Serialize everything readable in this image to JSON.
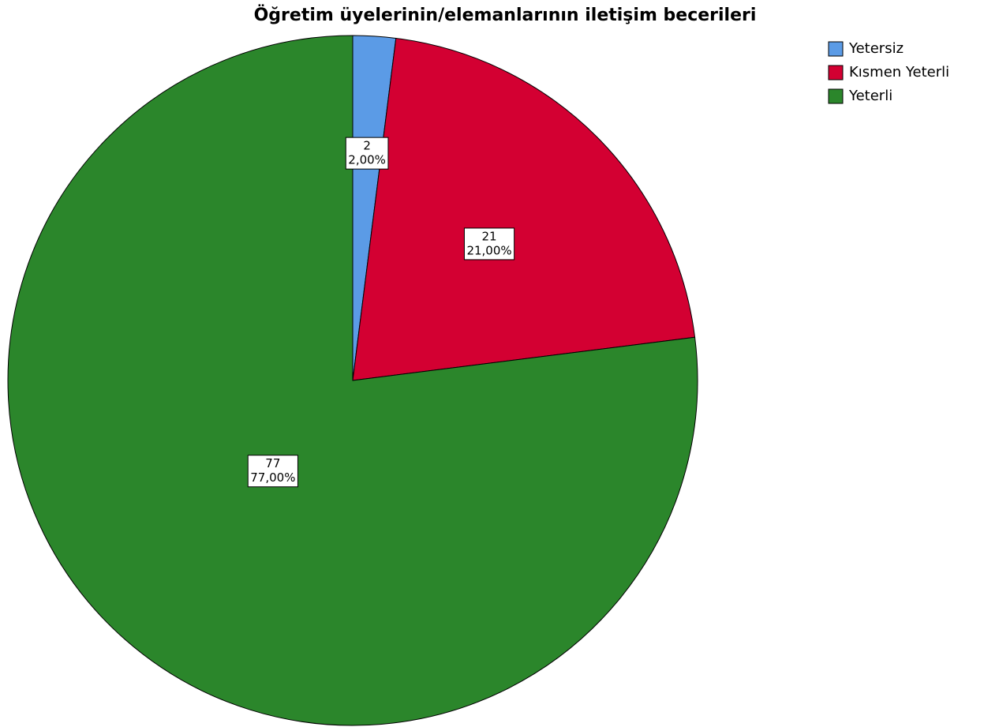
{
  "chart_data": {
    "type": "pie",
    "title": "Öğretim üyelerinin/elemanlarının iletişim becerileri",
    "categories": [
      "Yetersiz",
      "Kısmen Yeterli",
      "Yeterli"
    ],
    "values": [
      2,
      21,
      77
    ],
    "value_labels": [
      "2,00%",
      "21,00%",
      "77,00%"
    ],
    "colors": [
      "#5b9be6",
      "#d30032",
      "#2b862b"
    ],
    "legend": "top-right"
  }
}
